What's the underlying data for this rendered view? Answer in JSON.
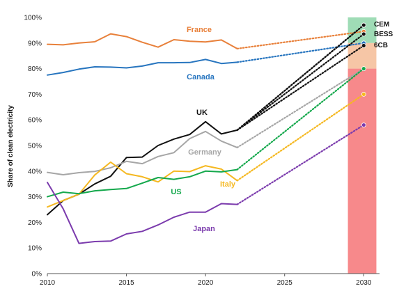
{
  "chart_data": {
    "type": "line",
    "ylabel": "Share of clean electricity",
    "xlim": [
      2010,
      2031
    ],
    "ylim": [
      0,
      100
    ],
    "x_ticks": [
      "2010",
      "2015",
      "2020",
      "2025",
      "2030"
    ],
    "y_ticks": [
      "0%",
      "10%",
      "20%",
      "30%",
      "40%",
      "50%",
      "60%",
      "70%",
      "80%",
      "90%",
      "100%"
    ],
    "bands": [
      {
        "from": 90,
        "to": 100,
        "color": "#9fdcb6"
      },
      {
        "from": 80,
        "to": 90,
        "color": "#f6c6a6"
      },
      {
        "from": 0,
        "to": 80,
        "color": "#f7898b"
      }
    ],
    "band_x": [
      2029.0,
      2030.8
    ],
    "series": [
      {
        "name": "France",
        "color": "#e8803a",
        "x": [
          2010,
          2011,
          2012,
          2013,
          2014,
          2015,
          2016,
          2017,
          2018,
          2019,
          2020,
          2021,
          2022
        ],
        "values": [
          89.5,
          89.3,
          90.0,
          90.5,
          93.6,
          92.5,
          90.3,
          88.4,
          91.3,
          90.7,
          90.4,
          91.2,
          87.8
        ],
        "projection": [
          [
            2022,
            87.8
          ],
          [
            2030,
            94.5
          ]
        ]
      },
      {
        "name": "Canada",
        "color": "#2775bf",
        "x": [
          2010,
          2011,
          2012,
          2013,
          2014,
          2015,
          2016,
          2017,
          2018,
          2019,
          2020,
          2021,
          2022
        ],
        "values": [
          77.5,
          78.5,
          79.8,
          80.7,
          80.6,
          80.3,
          81.0,
          82.3,
          82.3,
          82.4,
          83.6,
          82.0,
          82.5
        ],
        "projection": [
          [
            2022,
            82.5
          ],
          [
            2030,
            90.0
          ]
        ]
      },
      {
        "name": "UK",
        "color": "#111111",
        "x": [
          2010,
          2011,
          2012,
          2013,
          2014,
          2015,
          2016,
          2017,
          2018,
          2019,
          2020,
          2021,
          2022
        ],
        "values": [
          23.0,
          28.5,
          31.0,
          35.0,
          38.0,
          45.3,
          45.5,
          50.0,
          52.5,
          54.3,
          59.3,
          54.5,
          56.0
        ],
        "projection": [
          [
            2022,
            56.0
          ],
          [
            2030,
            97.0
          ]
        ]
      },
      {
        "name": "Germany",
        "color": "#a6a6a6",
        "x": [
          2010,
          2011,
          2012,
          2013,
          2014,
          2015,
          2016,
          2017,
          2018,
          2019,
          2020,
          2021,
          2022
        ],
        "values": [
          39.5,
          38.6,
          39.4,
          39.9,
          41.3,
          43.8,
          42.9,
          45.7,
          47.2,
          52.7,
          55.5,
          51.7,
          49.2
        ],
        "projection": [
          [
            2022,
            49.2
          ],
          [
            2030,
            80.0
          ]
        ]
      },
      {
        "name": "Italy",
        "color": "#f5b820",
        "x": [
          2010,
          2011,
          2012,
          2013,
          2014,
          2015,
          2016,
          2017,
          2018,
          2019,
          2020,
          2021,
          2022
        ],
        "values": [
          26.0,
          28.5,
          31.0,
          38.5,
          43.5,
          39.0,
          37.8,
          35.8,
          40.0,
          39.8,
          42.1,
          40.8,
          36.3
        ],
        "projection": [
          [
            2022,
            36.3
          ],
          [
            2030,
            70.0
          ]
        ]
      },
      {
        "name": "US",
        "color": "#14a84c",
        "x": [
          2010,
          2011,
          2012,
          2013,
          2014,
          2015,
          2016,
          2017,
          2018,
          2019,
          2020,
          2021,
          2022
        ],
        "values": [
          30.0,
          31.8,
          31.2,
          32.3,
          32.8,
          33.2,
          35.3,
          37.5,
          36.8,
          37.8,
          40.0,
          39.7,
          40.6
        ],
        "projection": [
          [
            2022,
            40.6
          ],
          [
            2030,
            80.0
          ]
        ]
      },
      {
        "name": "Japan",
        "color": "#7b3bad",
        "x": [
          2010,
          2011,
          2012,
          2013,
          2014,
          2015,
          2016,
          2017,
          2018,
          2019,
          2020,
          2021,
          2022
        ],
        "values": [
          35.6,
          25.3,
          11.8,
          12.5,
          12.7,
          15.5,
          16.5,
          19.0,
          22.0,
          24.0,
          24.0,
          27.3,
          27.0
        ],
        "projection": [
          [
            2022,
            27.0
          ],
          [
            2030,
            58.0
          ]
        ]
      }
    ],
    "scenario_markers": [
      {
        "name": "CEM",
        "value": 97.0
      },
      {
        "name": "BESS",
        "value": 93.5
      },
      {
        "name": "6CB",
        "value": 89.0
      }
    ]
  }
}
